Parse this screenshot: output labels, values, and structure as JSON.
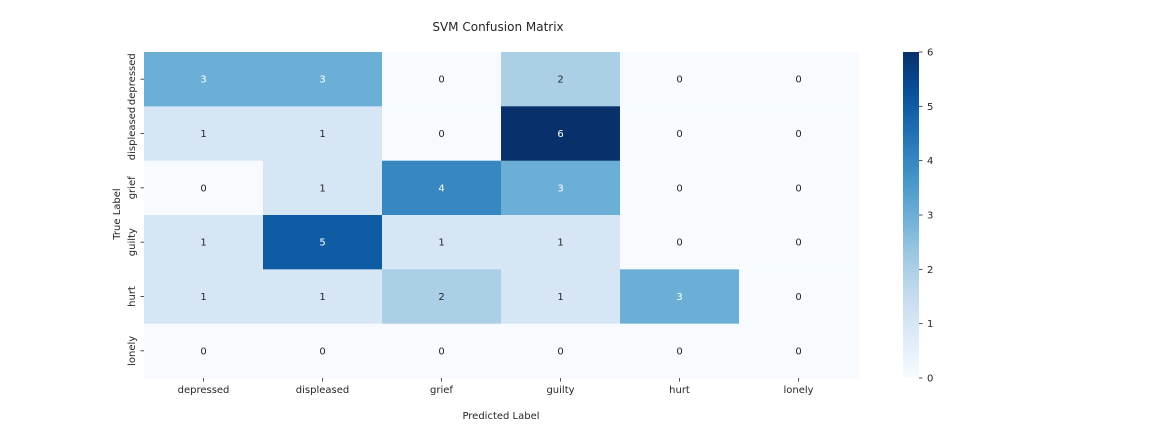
{
  "chart_data": {
    "type": "heatmap",
    "title": "SVM Confusion Matrix",
    "xlabel": "Predicted Label",
    "ylabel": "True Label",
    "x_categories": [
      "depressed",
      "displeased",
      "grief",
      "guilty",
      "hurt",
      "lonely"
    ],
    "y_categories": [
      "depressed",
      "displeased",
      "grief",
      "guilty",
      "hurt",
      "lonely"
    ],
    "values": [
      [
        3,
        3,
        0,
        2,
        0,
        0
      ],
      [
        1,
        1,
        0,
        6,
        0,
        0
      ],
      [
        0,
        1,
        4,
        3,
        0,
        0
      ],
      [
        1,
        5,
        1,
        1,
        0,
        0
      ],
      [
        1,
        1,
        2,
        1,
        3,
        0
      ],
      [
        0,
        0,
        0,
        0,
        0,
        0
      ]
    ],
    "colormap": "Blues",
    "colorbar": {
      "min": 0,
      "max": 6,
      "ticks": [
        "0",
        "1",
        "2",
        "3",
        "4",
        "5",
        "6"
      ]
    },
    "grid": false,
    "legend": "colorbar-right"
  }
}
